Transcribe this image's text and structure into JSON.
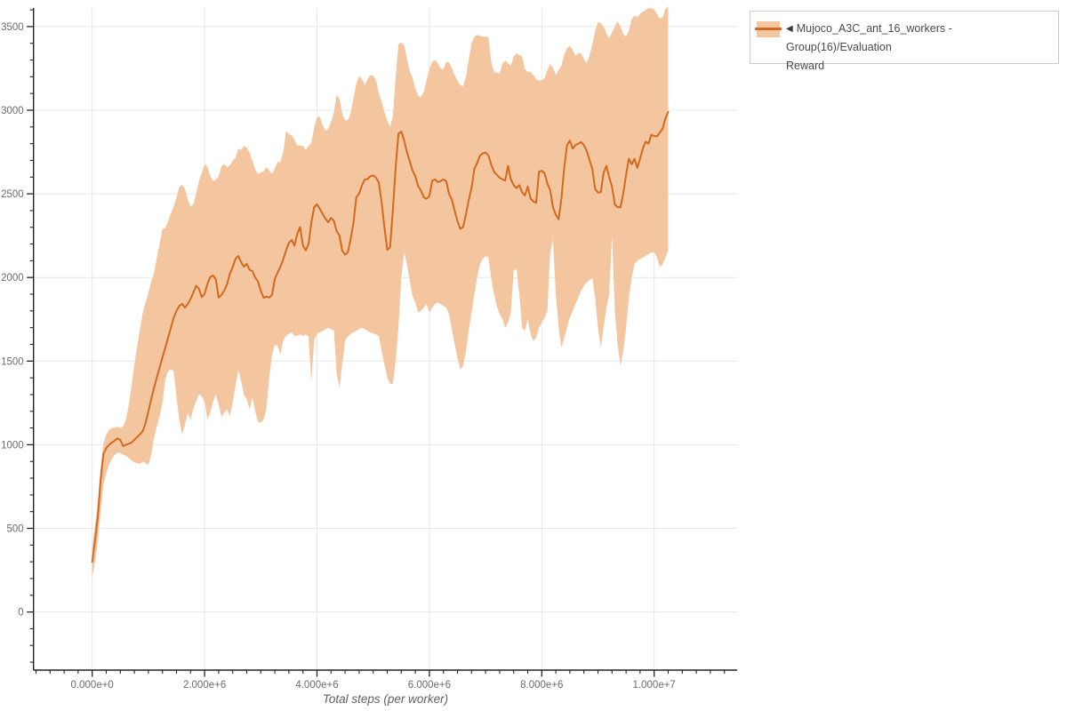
{
  "legend": {
    "arrow": "◀",
    "label_line1": "Mujoco_A3C_ant_16_workers - Group(16)/Evaluation",
    "label_line2": "Reward"
  },
  "axes": {
    "x_title": "Total steps (per worker)"
  },
  "colors": {
    "line": "#d2691e",
    "band": "#f4c6a0",
    "grid": "#e7e7e7",
    "axis": "#222222",
    "tick_label": "#6b6b6b",
    "legend_border": "#cbcbcb",
    "legend_text": "#4a4a4a"
  },
  "chart_data": {
    "type": "line",
    "title": "",
    "xlabel": "Total steps (per worker)",
    "ylabel": "",
    "grid": true,
    "legend_position": "outside-top-right",
    "xlim_steps": [
      -1040000,
      11480000
    ],
    "ylim": [
      -346,
      3615
    ],
    "x_ticks": [
      {
        "value_steps": 0,
        "label": "0.000e+0"
      },
      {
        "value_steps": 2000000,
        "label": "2.000e+6"
      },
      {
        "value_steps": 4000000,
        "label": "4.000e+6"
      },
      {
        "value_steps": 6000000,
        "label": "6.000e+6"
      },
      {
        "value_steps": 8000000,
        "label": "8.000e+6"
      },
      {
        "value_steps": 10000000,
        "label": "1.000e+7"
      }
    ],
    "y_ticks": [
      {
        "value": 0,
        "label": "0"
      },
      {
        "value": 500,
        "label": "500"
      },
      {
        "value": 1000,
        "label": "1000"
      },
      {
        "value": 1500,
        "label": "1500"
      },
      {
        "value": 2000,
        "label": "2000"
      },
      {
        "value": 2500,
        "label": "2500"
      },
      {
        "value": 3000,
        "label": "3000"
      },
      {
        "value": 3500,
        "label": "3500"
      }
    ],
    "minor_x_step_steps": 250000,
    "minor_y_step": 100,
    "series": [
      {
        "name": "Mujoco_A3C_ant_16_workers - Group(16)/Evaluation Reward",
        "line_color": "#d2691e",
        "band_color": "#f4c6a0",
        "x_encoding": {
          "start_million_steps": 0,
          "step_million_steps": 0.05,
          "count": 206
        },
        "mean": [
          300,
          430,
          570,
          790,
          945,
          980,
          1000,
          1012,
          1025,
          1038,
          1028,
          992,
          1000,
          1006,
          1012,
          1030,
          1046,
          1062,
          1082,
          1130,
          1200,
          1272,
          1340,
          1402,
          1462,
          1522,
          1580,
          1640,
          1700,
          1758,
          1800,
          1830,
          1842,
          1820,
          1840,
          1872,
          1910,
          1950,
          1932,
          1882,
          1902,
          1962,
          2002,
          2012,
          1990,
          1880,
          1896,
          1922,
          1960,
          2022,
          2062,
          2112,
          2128,
          2092,
          2064,
          2082,
          2046,
          2038,
          2000,
          1976,
          1920,
          1878,
          1886,
          1880,
          1896,
          1992,
          2030,
          2064,
          2110,
          2162,
          2208,
          2224,
          2190,
          2262,
          2302,
          2190,
          2162,
          2200,
          2330,
          2420,
          2438,
          2410,
          2380,
          2352,
          2330,
          2356,
          2340,
          2276,
          2250,
          2160,
          2136,
          2152,
          2230,
          2330,
          2478,
          2502,
          2550,
          2586,
          2588,
          2605,
          2610,
          2596,
          2568,
          2450,
          2302,
          2165,
          2180,
          2400,
          2660,
          2858,
          2872,
          2820,
          2750,
          2695,
          2640,
          2605,
          2545,
          2520,
          2480,
          2470,
          2486,
          2578,
          2586,
          2570,
          2576,
          2586,
          2575,
          2500,
          2465,
          2400,
          2336,
          2290,
          2302,
          2375,
          2462,
          2535,
          2649,
          2685,
          2729,
          2741,
          2747,
          2729,
          2676,
          2632,
          2614,
          2596,
          2587,
          2579,
          2667,
          2587,
          2552,
          2534,
          2552,
          2508,
          2490,
          2543,
          2472,
          2455,
          2446,
          2632,
          2638,
          2623,
          2560,
          2522,
          2419,
          2375,
          2348,
          2472,
          2660,
          2790,
          2818,
          2770,
          2791,
          2800,
          2809,
          2791,
          2756,
          2702,
          2649,
          2530,
          2508,
          2510,
          2625,
          2667,
          2600,
          2543,
          2437,
          2420,
          2420,
          2500,
          2614,
          2710,
          2676,
          2710,
          2655,
          2711,
          2773,
          2812,
          2800,
          2853,
          2846,
          2844,
          2866,
          2890,
          2950,
          2990
        ],
        "band_low": [
          210,
          300,
          420,
          600,
          760,
          830,
          880,
          915,
          940,
          952,
          950,
          940,
          935,
          920,
          905,
          895,
          890,
          885,
          900,
          890,
          880,
          940,
          1040,
          1110,
          1170,
          1250,
          1390,
          1440,
          1452,
          1438,
          1280,
          1150,
          1060,
          1120,
          1190,
          1150,
          1215,
          1258,
          1302,
          1290,
          1256,
          1152,
          1190,
          1256,
          1302,
          1240,
          1166,
          1192,
          1212,
          1172,
          1252,
          1352,
          1446,
          1380,
          1300,
          1272,
          1212,
          1282,
          1200,
          1140,
          1132,
          1152,
          1212,
          1402,
          1532,
          1600,
          1588,
          1540,
          1622,
          1652,
          1662,
          1672,
          1650,
          1652,
          1660,
          1650,
          1660,
          1645,
          1380,
          1620,
          1662,
          1672,
          1680,
          1690,
          1700,
          1692,
          1682,
          1430,
          1342,
          1482,
          1620,
          1650,
          1662,
          1672,
          1680,
          1692,
          1700,
          1692,
          1680,
          1672,
          1665,
          1660,
          1650,
          1560,
          1480,
          1402,
          1365,
          1362,
          1500,
          1700,
          2000,
          2148,
          2080,
          1980,
          1890,
          1850,
          1790,
          1800,
          1820,
          1840,
          1790,
          1820,
          1840,
          1850,
          1840,
          1830,
          1820,
          1780,
          1690,
          1600,
          1520,
          1450,
          1470,
          1560,
          1680,
          1790,
          1900,
          2000,
          2080,
          2110,
          2128,
          2120,
          2000,
          1900,
          1830,
          1780,
          1750,
          1700,
          1730,
          1790,
          2040,
          2050,
          1900,
          1700,
          1680,
          1750,
          1660,
          1620,
          1642,
          1700,
          1730,
          1760,
          1800,
          2150,
          2230,
          1900,
          1700,
          1580,
          1640,
          1700,
          1760,
          1800,
          1840,
          1880,
          1920,
          1950,
          1970,
          1985,
          1995,
          1880,
          1700,
          1580,
          1700,
          1820,
          1900,
          2240,
          1800,
          1600,
          1470,
          1560,
          1700,
          1880,
          2000,
          2080,
          2100,
          2110,
          2120,
          2130,
          2140,
          2148,
          2150,
          2120,
          2060,
          2080,
          2120,
          2160
        ],
        "band_high": [
          390,
          520,
          660,
          860,
          1010,
          1060,
          1090,
          1100,
          1102,
          1108,
          1100,
          1110,
          1150,
          1240,
          1350,
          1480,
          1590,
          1690,
          1790,
          1850,
          1910,
          1975,
          2025,
          2120,
          2200,
          2290,
          2296,
          2338,
          2382,
          2425,
          2478,
          2542,
          2552,
          2532,
          2468,
          2422,
          2438,
          2502,
          2578,
          2625,
          2678,
          2662,
          2610,
          2575,
          2585,
          2605,
          2665,
          2678,
          2660,
          2670,
          2700,
          2715,
          2770,
          2762,
          2786,
          2778,
          2745,
          2700,
          2645,
          2620,
          2626,
          2636,
          2660,
          2640,
          2620,
          2652,
          2690,
          2690,
          2750,
          2878,
          2856,
          2850,
          2822,
          2788,
          2790,
          2786,
          2762,
          2786,
          2806,
          2896,
          2956,
          2962,
          2910,
          2876,
          2890,
          2930,
          2985,
          3092,
          3068,
          2980,
          2940,
          2940,
          2985,
          3075,
          3158,
          3205,
          3186,
          3150,
          3186,
          3210,
          3205,
          3180,
          3100,
          3050,
          2990,
          2940,
          2900,
          2962,
          3200,
          3395,
          3405,
          3390,
          3310,
          3232,
          3196,
          3130,
          3085,
          3080,
          3110,
          3180,
          3246,
          3290,
          3300,
          3280,
          3250,
          3246,
          3290,
          3286,
          3250,
          3210,
          3176,
          3150,
          3142,
          3200,
          3300,
          3400,
          3440,
          3450,
          3446,
          3440,
          3440,
          3436,
          3290,
          3230,
          3225,
          3220,
          3280,
          3296,
          3280,
          3266,
          3320,
          3340,
          3330,
          3320,
          3246,
          3230,
          3230,
          3210,
          3186,
          3176,
          3180,
          3192,
          3240,
          3276,
          3255,
          3210,
          3240,
          3265,
          3335,
          3370,
          3385,
          3360,
          3325,
          3340,
          3340,
          3306,
          3280,
          3325,
          3395,
          3475,
          3528,
          3520,
          3500,
          3460,
          3430,
          3465,
          3500,
          3530,
          3500,
          3455,
          3440,
          3475,
          3545,
          3565,
          3556,
          3576,
          3590,
          3600,
          3610,
          3610,
          3600,
          3576,
          3548,
          3556,
          3605,
          3620
        ]
      }
    ]
  }
}
